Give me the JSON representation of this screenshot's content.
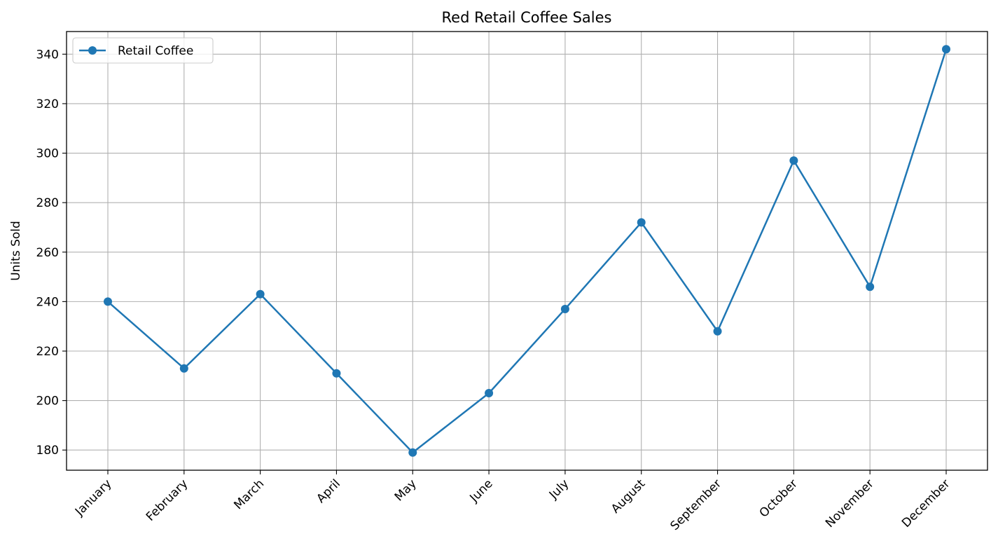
{
  "chart_data": {
    "type": "line",
    "title": "Red Retail Coffee Sales",
    "xlabel": "",
    "ylabel": "Units Sold",
    "categories": [
      "January",
      "February",
      "March",
      "April",
      "May",
      "June",
      "July",
      "August",
      "September",
      "October",
      "November",
      "December"
    ],
    "series": [
      {
        "name": "Retail Coffee",
        "values": [
          240,
          213,
          243,
          211,
          179,
          203,
          237,
          272,
          228,
          297,
          246,
          342
        ],
        "color": "#1f77b4",
        "marker": "circle"
      }
    ],
    "yticks": [
      180,
      200,
      220,
      240,
      260,
      280,
      300,
      320,
      340
    ],
    "ylim": [
      171.85,
      349.15
    ],
    "grid": true,
    "legend_position": "top-left",
    "xtick_rotation": 45
  }
}
